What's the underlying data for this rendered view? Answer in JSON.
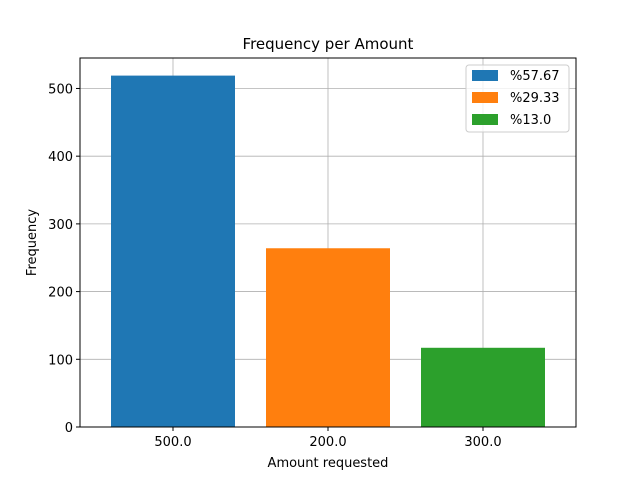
{
  "chart_data": {
    "type": "bar",
    "title": "Frequency per Amount",
    "xlabel": "Amount requested",
    "ylabel": "Frequency",
    "categories": [
      "500.0",
      "200.0",
      "300.0"
    ],
    "values": [
      519,
      264,
      117
    ],
    "colors": [
      "#1f77b4",
      "#ff7f0e",
      "#2ca02c"
    ],
    "ylim": [
      0,
      545
    ],
    "yticks": [
      0,
      100,
      200,
      300,
      400,
      500
    ],
    "grid": true,
    "legend": {
      "placement": "top-right",
      "entries": [
        "%57.67",
        "%29.33",
        "%13.0"
      ]
    }
  }
}
